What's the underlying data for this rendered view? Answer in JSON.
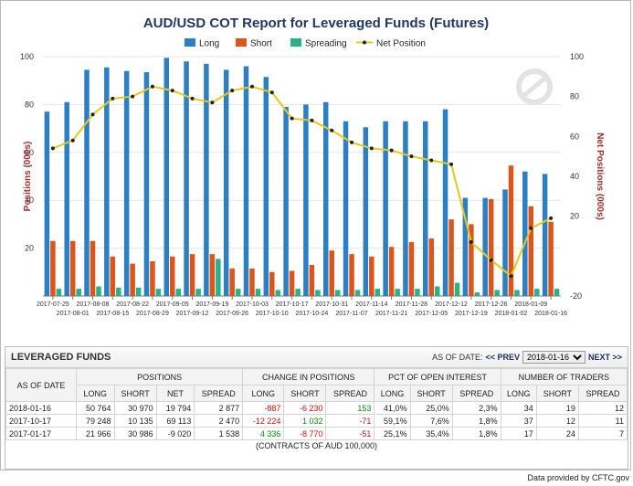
{
  "chart_data": {
    "type": "bar",
    "title": "AUD/USD COT Report for Leveraged Funds (Futures)",
    "legend": [
      "Long",
      "Short",
      "Spreading",
      "Net Position"
    ],
    "legend_position": "top",
    "ylabel_left": "Positions (000s)",
    "ylabel_right": "Net Positions (000s)",
    "ylim_left": [
      0,
      100
    ],
    "ylim_right": [
      -20,
      100
    ],
    "yticks_left": [
      "20",
      "40",
      "60",
      "80",
      "100"
    ],
    "yticks_right": [
      "-20",
      "20",
      "40",
      "60",
      "80",
      "100"
    ],
    "categories": [
      "2017-07-25",
      "2017-08-01",
      "2017-08-08",
      "2017-08-15",
      "2017-08-22",
      "2017-08-29",
      "2017-09-05",
      "2017-09-12",
      "2017-09-19",
      "2017-09-26",
      "2017-10-03",
      "2017-10-10",
      "2017-10-17",
      "2017-10-24",
      "2017-10-31",
      "2017-11-07",
      "2017-11-14",
      "2017-11-21",
      "2017-11-28",
      "2017-12-05",
      "2017-12-12",
      "2017-12-19",
      "2017-12-26",
      "2018-01-02",
      "2018-01-09",
      "2018-01-16"
    ],
    "series": [
      {
        "name": "Long",
        "type": "bar",
        "axis": "left",
        "color": "#2d7fc3",
        "values": [
          77,
          81,
          94.5,
          95.5,
          94,
          93.5,
          99.5,
          98,
          97,
          94.5,
          96,
          91.5,
          79,
          80,
          81,
          73,
          70.5,
          73,
          73,
          73,
          78,
          41,
          41,
          44.5,
          52,
          51
        ]
      },
      {
        "name": "Short",
        "type": "bar",
        "axis": "left",
        "color": "#d9561c",
        "values": [
          23,
          23,
          23,
          16.5,
          13.5,
          14.5,
          16.5,
          17.5,
          17.5,
          11.5,
          11.5,
          10,
          10.5,
          13,
          19,
          17.5,
          16.5,
          20.5,
          22.5,
          24,
          32,
          30,
          40.5,
          54.5,
          37.5,
          31
        ]
      },
      {
        "name": "Spreading",
        "type": "bar",
        "axis": "left",
        "color": "#2bb08a",
        "values": [
          3,
          3,
          4,
          3.5,
          3.5,
          3,
          3,
          3,
          15.5,
          3,
          3,
          2.5,
          3,
          2.5,
          2.5,
          2.5,
          3,
          3,
          3,
          4,
          5.5,
          1.5,
          2.5,
          2.5,
          3,
          3
        ]
      },
      {
        "name": "Net Position",
        "type": "line",
        "axis": "right",
        "color": "#e8c81a",
        "values": [
          54,
          58,
          71,
          79,
          80,
          85,
          83,
          79,
          77,
          83,
          85,
          82,
          69,
          68,
          63,
          57,
          54,
          53,
          50,
          48,
          46,
          7,
          -2,
          -10,
          14,
          19
        ]
      }
    ]
  },
  "section": {
    "title": "LEVERAGED FUNDS",
    "as_of_label": "AS OF DATE:",
    "prev_label": "<< PREV",
    "next_label": "NEXT >>",
    "selected_date": "2018-01-16"
  },
  "table": {
    "col_as_of": "AS OF DATE",
    "groups": {
      "positions": "POSITIONS",
      "change": "CHANGE IN POSITIONS",
      "pct": "PCT OF OPEN INTEREST",
      "traders": "NUMBER OF TRADERS"
    },
    "sub": {
      "positions": [
        "LONG",
        "SHORT",
        "NET",
        "SPREAD"
      ],
      "change": [
        "LONG",
        "SHORT",
        "SPREAD"
      ],
      "pct": [
        "LONG",
        "SHORT",
        "SPREAD"
      ],
      "traders": [
        "LONG",
        "SHORT",
        "SPREAD"
      ]
    },
    "rows": [
      {
        "date": "2018-01-16",
        "pos": [
          "50 764",
          "30 970",
          "19 794",
          "2 877"
        ],
        "chg": [
          "-887",
          "-6 230",
          "153"
        ],
        "chg_sign": [
          "neg",
          "neg",
          "pos"
        ],
        "pct": [
          "41,0%",
          "25,0%",
          "2,3%"
        ],
        "tr": [
          "34",
          "19",
          "12"
        ]
      },
      {
        "date": "2017-10-17",
        "pos": [
          "79 248",
          "10 135",
          "69 113",
          "2 470"
        ],
        "chg": [
          "-12 224",
          "1 032",
          "-71"
        ],
        "chg_sign": [
          "neg",
          "pos",
          "neg"
        ],
        "pct": [
          "59,1%",
          "7,6%",
          "1,8%"
        ],
        "tr": [
          "37",
          "12",
          "11"
        ]
      },
      {
        "date": "2017-01-17",
        "pos": [
          "21 966",
          "30 986",
          "-9 020",
          "1 538"
        ],
        "chg": [
          "4 336",
          "-8 770",
          "-51"
        ],
        "chg_sign": [
          "pos",
          "neg",
          "neg"
        ],
        "pct": [
          "25,1%",
          "35,4%",
          "1,8%"
        ],
        "tr": [
          "17",
          "24",
          "7"
        ]
      }
    ],
    "units": "(CONTRACTS OF AUD 100,000)"
  },
  "credit": "Data provided by CFTC.gov"
}
